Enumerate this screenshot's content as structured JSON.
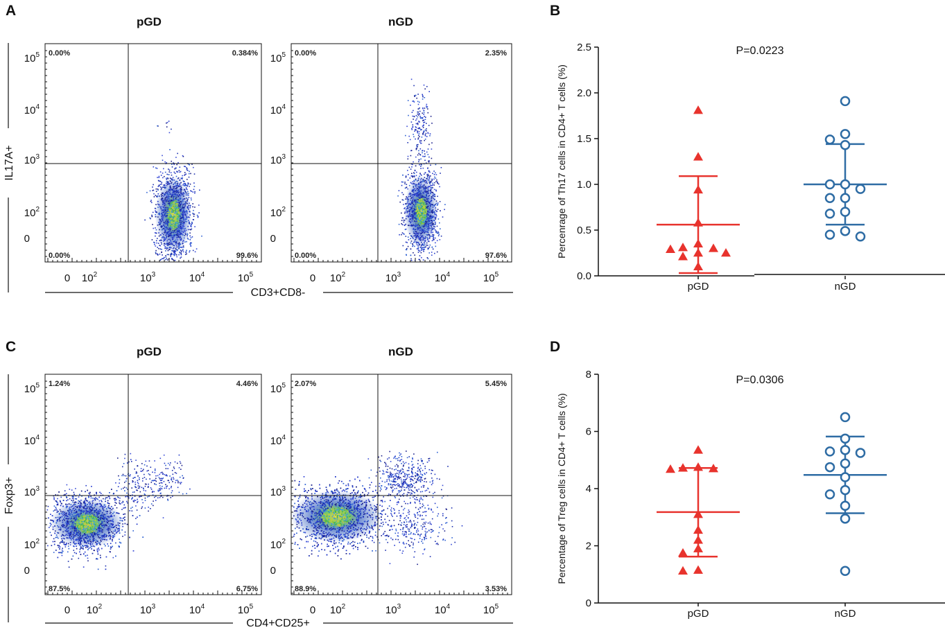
{
  "chart_data": [
    {
      "panel": "A",
      "type": "flow-cytometry",
      "ylabel": "IL17A+",
      "xlabel": "CD3+CD8-",
      "plots": [
        {
          "title": "pGD",
          "quadrants": {
            "ul": "0.00%",
            "ur": "0.384%",
            "ll": "0.00%",
            "lr": "99.6%"
          }
        },
        {
          "title": "nGD",
          "quadrants": {
            "ul": "0.00%",
            "ur": "2.35%",
            "ll": "0.00%",
            "lr": "97.6%"
          }
        }
      ]
    },
    {
      "panel": "B",
      "type": "scatter",
      "ylabel": "Percenrage of Th17 cells in CD4+ T cells (%)",
      "categories": [
        "pGD",
        "nGD"
      ],
      "ylim": [
        0,
        2.5
      ],
      "yticks": [
        "0.0",
        "0.5",
        "1.0",
        "1.5",
        "2.0",
        "2.5"
      ],
      "p_value": "P=0.0223",
      "series": [
        {
          "name": "pGD",
          "color": "#e8332d",
          "marker": "triangle",
          "values": [
            1.81,
            1.3,
            0.94,
            0.58,
            0.35,
            0.31,
            0.3,
            0.29,
            0.25,
            0.25,
            0.21,
            0.1
          ],
          "mean": 0.56,
          "sd_low": 0.03,
          "sd_high": 1.09
        },
        {
          "name": "nGD",
          "color": "#2e6ca4",
          "marker": "circle",
          "values": [
            1.91,
            1.55,
            1.49,
            1.43,
            1.0,
            1.0,
            0.95,
            0.85,
            0.85,
            0.7,
            0.68,
            0.49,
            0.45,
            0.43
          ],
          "mean": 1.0,
          "sd_low": 0.56,
          "sd_high": 1.44
        }
      ]
    },
    {
      "panel": "C",
      "type": "flow-cytometry",
      "ylabel": "Foxp3+",
      "xlabel": "CD4+CD25+",
      "plots": [
        {
          "title": "pGD",
          "quadrants": {
            "ul": "1.24%",
            "ur": "4.46%",
            "ll": "87.5%",
            "lr": "6.75%"
          }
        },
        {
          "title": "nGD",
          "quadrants": {
            "ul": "2.07%",
            "ur": "5.45%",
            "ll": "88.9%",
            "lr": "3.53%"
          }
        }
      ]
    },
    {
      "panel": "D",
      "type": "scatter",
      "ylabel": "Percentage of Treg cells in CD4+ T cells (%)",
      "categories": [
        "pGD",
        "nGD"
      ],
      "ylim": [
        0,
        8
      ],
      "yticks": [
        "0",
        "2",
        "4",
        "6",
        "8"
      ],
      "p_value": "P=0.0306",
      "series": [
        {
          "name": "pGD",
          "color": "#e8332d",
          "marker": "triangle",
          "values": [
            5.35,
            4.75,
            4.72,
            4.7,
            4.68,
            3.1,
            2.55,
            2.2,
            1.9,
            1.75,
            1.15,
            1.12
          ],
          "mean": 3.18,
          "sd_low": 1.62,
          "sd_high": 4.72
        },
        {
          "name": "nGD",
          "color": "#2e6ca4",
          "marker": "circle",
          "values": [
            6.5,
            5.75,
            5.35,
            5.25,
            5.3,
            4.88,
            4.75,
            4.4,
            3.95,
            3.8,
            3.4,
            2.95,
            1.12
          ],
          "mean": 4.48,
          "sd_low": 3.14,
          "sd_high": 5.82
        }
      ]
    }
  ],
  "flow_axis": {
    "x_ticks": [
      {
        "base": "0",
        "exp": ""
      },
      {
        "base": "10",
        "exp": "2"
      },
      {
        "base": "10",
        "exp": "3"
      },
      {
        "base": "10",
        "exp": "4"
      },
      {
        "base": "10",
        "exp": "5"
      }
    ],
    "y_ticks": [
      {
        "base": "10",
        "exp": "5"
      },
      {
        "base": "10",
        "exp": "4"
      },
      {
        "base": "10",
        "exp": "3"
      },
      {
        "base": "10",
        "exp": "2"
      },
      {
        "base": "0",
        "exp": ""
      }
    ]
  },
  "colors": {
    "pGD": "#e8332d",
    "nGD": "#2e6ca4"
  }
}
